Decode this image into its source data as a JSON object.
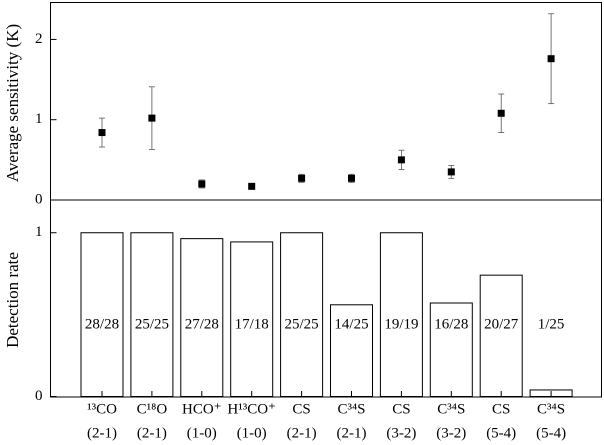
{
  "chart_data": [
    {
      "type": "errorbar",
      "ylabel": "Average sensitivity (K)",
      "values": [
        0.84,
        1.02,
        0.2,
        0.17,
        0.27,
        0.27,
        0.5,
        0.35,
        1.08,
        1.76
      ],
      "errors": [
        0.18,
        0.39,
        0.05,
        0.02,
        0.05,
        0.05,
        0.12,
        0.08,
        0.24,
        0.56
      ],
      "color": "#000000",
      "ylim": [
        0,
        2.46
      ],
      "yticks": [
        0,
        1,
        2
      ]
    },
    {
      "type": "bar",
      "ylabel": "Detection  rate",
      "categories": [
        "¹³CO",
        "C¹⁸O",
        "HCO⁺",
        "H¹³CO⁺",
        "CS",
        "C³⁴S",
        "CS",
        "C³⁴S",
        "CS",
        "C³⁴S"
      ],
      "transitions": [
        "(2-1)",
        "(2-1)",
        "(1-0)",
        "(1-0)",
        "(2-1)",
        "(2-1)",
        "(3-2)",
        "(3-2)",
        "(5-4)",
        "(5-4)"
      ],
      "values": [
        1,
        1,
        0.964,
        0.944,
        1,
        0.56,
        1,
        0.571,
        0.741,
        0.04
      ],
      "value_labels": [
        "28/28",
        "25/25",
        "27/28",
        "17/18",
        "25/25",
        "14/25",
        "19/19",
        "16/28",
        "20/27",
        "1/25"
      ],
      "color": "#ffffff",
      "ylim": [
        0,
        1.2
      ],
      "yticks": [
        0,
        1
      ]
    }
  ]
}
